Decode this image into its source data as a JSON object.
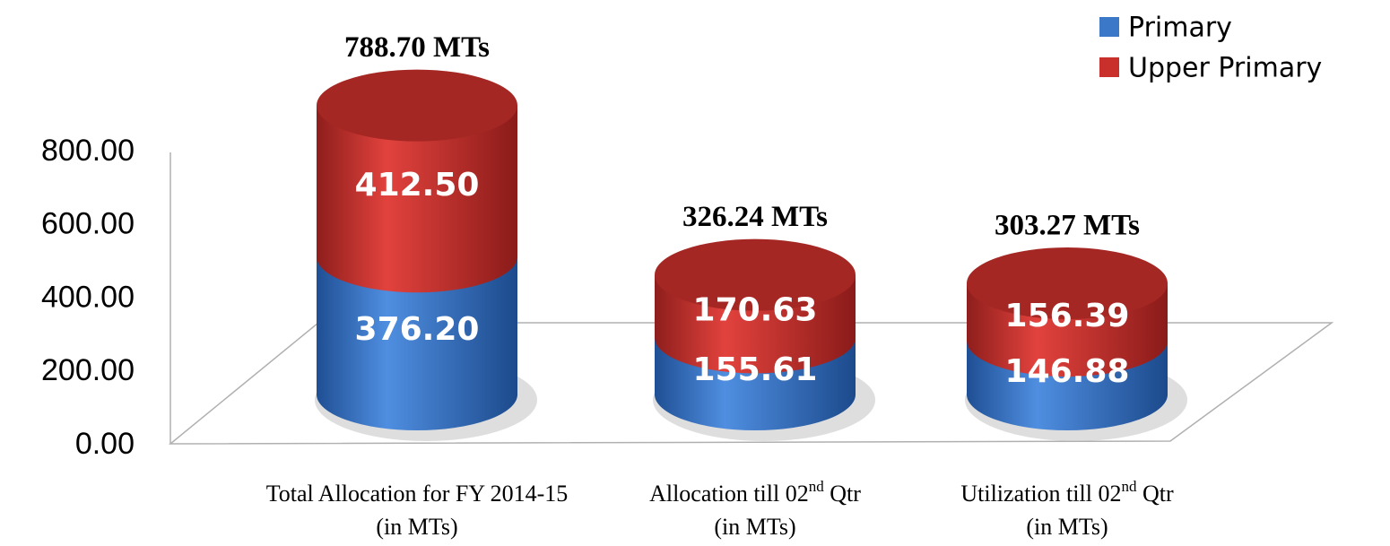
{
  "chart_data": {
    "type": "stacked-cylinder",
    "categories": [
      "Total Allocation for FY 2014-15\n(in MTs)",
      "Allocation till 02nd Qtr\n(in MTs)",
      "Utilization till 02nd Qtr\n(in MTs)"
    ],
    "series": [
      {
        "name": "Primary",
        "color": "#3b78c8",
        "values": [
          376.2,
          155.61,
          146.88
        ],
        "value_labels": [
          "376.20",
          "155.61",
          "146.88"
        ]
      },
      {
        "name": "Upper Primary",
        "color": "#c9302c",
        "values": [
          412.5,
          170.63,
          156.39
        ],
        "value_labels": [
          "412.50",
          "170.63",
          "156.39"
        ]
      }
    ],
    "totals": [
      788.7,
      326.24,
      303.27
    ],
    "total_labels": [
      "788.70 MTs",
      "326.24 MTs",
      "303.27 MTs"
    ],
    "ylim": [
      0,
      800
    ],
    "yticks": [
      {
        "value": 0,
        "label": "0.00"
      },
      {
        "value": 200,
        "label": "200.00"
      },
      {
        "value": 400,
        "label": "400.00"
      },
      {
        "value": 600,
        "label": "600.00"
      },
      {
        "value": 800,
        "label": "800.00"
      }
    ],
    "legend": "top-right"
  }
}
